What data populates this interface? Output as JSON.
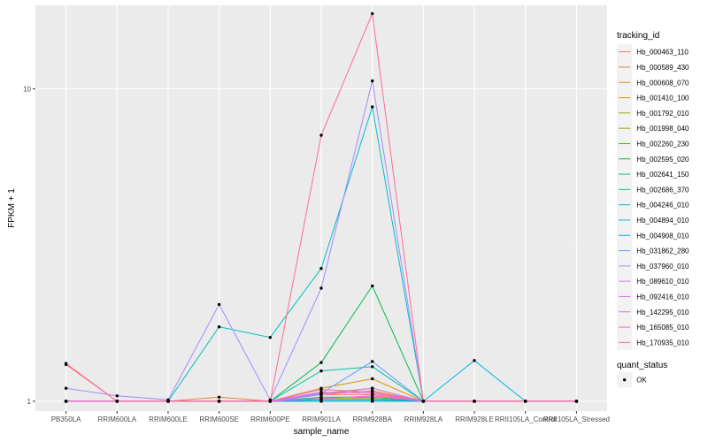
{
  "chart_data": {
    "type": "line",
    "xlabel": "sample_name",
    "ylabel": "FPKM + 1",
    "y_scale": "log10",
    "ylim": [
      0.93,
      18.5
    ],
    "y_ticks": [
      1,
      10
    ],
    "y_tick_labels": [
      "1",
      "10"
    ],
    "grid": true,
    "legend_position": "right",
    "categories": [
      "PB350LA",
      "RRIM600LA",
      "RRIM600LE",
      "RRIM600SE",
      "RRIM600PE",
      "RRIM901LA",
      "RRIM928BA",
      "RRIM928LA",
      "RRIM928LE",
      "RRII105LA_Control",
      "RRII105LA_Stressed"
    ],
    "legend_title": "tracking_id",
    "series": [
      {
        "name": "Hb_000463_110",
        "color": "#F8766D",
        "values": [
          1.31,
          1.0,
          1.0,
          1.0,
          1.0,
          1.05,
          1.05,
          1.0,
          1.0,
          1.0,
          1.0
        ]
      },
      {
        "name": "Hb_000589_430",
        "color": "#EA8331",
        "values": [
          1.0,
          1.0,
          1.0,
          1.03,
          1.0,
          1.05,
          1.08,
          1.0,
          1.0,
          1.0,
          1.0
        ]
      },
      {
        "name": "Hb_000608_070",
        "color": "#D89000",
        "values": [
          1.0,
          1.0,
          1.0,
          1.0,
          1.0,
          1.1,
          1.18,
          1.0,
          1.0,
          1.0,
          1.0
        ]
      },
      {
        "name": "Hb_001410_100",
        "color": "#C09B00",
        "values": [
          1.0,
          1.0,
          1.0,
          1.0,
          1.0,
          1.06,
          1.1,
          1.0,
          1.0,
          1.0,
          1.0
        ]
      },
      {
        "name": "Hb_001792_010",
        "color": "#A3A500",
        "values": [
          1.0,
          1.0,
          1.0,
          1.0,
          1.0,
          1.02,
          1.02,
          1.0,
          1.0,
          1.0,
          1.0
        ]
      },
      {
        "name": "Hb_001998_040",
        "color": "#7CAE00",
        "values": [
          1.0,
          1.0,
          1.0,
          1.0,
          1.0,
          1.01,
          1.01,
          1.0,
          1.0,
          1.0,
          1.0
        ]
      },
      {
        "name": "Hb_002260_230",
        "color": "#39B600",
        "values": [
          1.0,
          1.0,
          1.0,
          1.0,
          1.0,
          1.0,
          1.0,
          1.0,
          1.0,
          1.0,
          1.0
        ]
      },
      {
        "name": "Hb_002595_020",
        "color": "#00BB4E",
        "values": [
          1.0,
          1.0,
          1.0,
          1.0,
          1.0,
          1.33,
          2.34,
          1.0,
          1.0,
          1.0,
          1.0
        ]
      },
      {
        "name": "Hb_002641_150",
        "color": "#00BF7D",
        "values": [
          1.0,
          1.0,
          1.0,
          1.0,
          1.0,
          1.03,
          1.03,
          1.0,
          1.0,
          1.0,
          1.0
        ]
      },
      {
        "name": "Hb_002686_370",
        "color": "#00C1A3",
        "values": [
          1.0,
          1.0,
          1.0,
          1.0,
          1.0,
          1.25,
          1.29,
          1.0,
          1.0,
          1.0,
          1.0
        ]
      },
      {
        "name": "Hb_004246_010",
        "color": "#00BFC4",
        "values": [
          1.0,
          1.0,
          1.0,
          1.73,
          1.6,
          2.66,
          8.75,
          1.0,
          1.0,
          1.0,
          1.0
        ]
      },
      {
        "name": "Hb_004894_010",
        "color": "#00B8E5",
        "values": [
          1.0,
          1.0,
          1.0,
          1.0,
          1.0,
          1.0,
          1.0,
          1.0,
          1.35,
          1.0,
          1.0
        ]
      },
      {
        "name": "Hb_004908_010",
        "color": "#00ACFC",
        "values": [
          1.0,
          1.0,
          1.0,
          1.0,
          1.0,
          1.01,
          1.01,
          1.0,
          1.0,
          1.0,
          1.0
        ]
      },
      {
        "name": "Hb_031862_280",
        "color": "#619CFF",
        "values": [
          1.0,
          1.0,
          1.0,
          1.0,
          1.0,
          1.06,
          1.34,
          1.0,
          1.0,
          1.0,
          1.0
        ]
      },
      {
        "name": "Hb_037960_010",
        "color": "#A58AFF",
        "values": [
          1.1,
          1.04,
          1.01,
          2.04,
          1.01,
          2.3,
          10.6,
          1.0,
          1.0,
          1.0,
          1.0
        ]
      },
      {
        "name": "Hb_089610_010",
        "color": "#C77CFF",
        "values": [
          1.0,
          1.0,
          1.0,
          1.0,
          1.0,
          1.05,
          1.1,
          1.0,
          1.0,
          1.0,
          1.0
        ]
      },
      {
        "name": "Hb_092416_010",
        "color": "#E76BF3",
        "values": [
          1.0,
          1.0,
          1.0,
          1.0,
          1.0,
          1.07,
          1.06,
          1.0,
          1.0,
          1.0,
          1.0
        ]
      },
      {
        "name": "Hb_142295_010",
        "color": "#FA62DB",
        "values": [
          1.0,
          1.0,
          1.0,
          1.0,
          1.0,
          1.02,
          1.04,
          1.0,
          1.0,
          1.0,
          1.0
        ]
      },
      {
        "name": "Hb_165085_010",
        "color": "#FF62BC",
        "values": [
          1.0,
          1.0,
          1.0,
          1.0,
          1.0,
          1.09,
          1.07,
          1.0,
          1.0,
          1.0,
          1.0
        ]
      },
      {
        "name": "Hb_170935_010",
        "color": "#FF6C91",
        "values": [
          1.32,
          1.0,
          1.0,
          1.0,
          1.0,
          7.1,
          17.4,
          1.0,
          1.0,
          1.0,
          1.0
        ]
      }
    ],
    "shape_legend": {
      "title": "quant_status",
      "items": [
        {
          "label": "OK"
        }
      ]
    },
    "colors": {
      "panel_bg": "#EBEBEB",
      "grid_major": "#FFFFFF",
      "grid_minor": "#F2F2F2",
      "point": "#000000",
      "legend_key_bg": "#F2F2F2"
    }
  }
}
